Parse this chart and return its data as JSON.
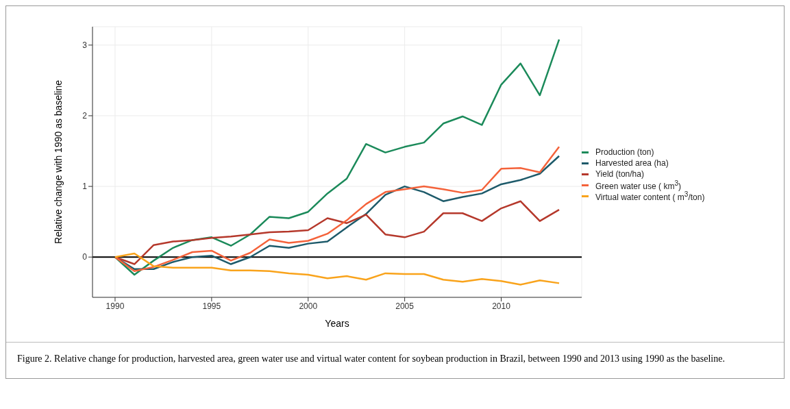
{
  "chart_data": {
    "type": "line",
    "xlabel": "Years",
    "ylabel": "Relative change with 1990 as baseline",
    "x": [
      1990,
      1991,
      1992,
      1993,
      1994,
      1995,
      1996,
      1997,
      1998,
      1999,
      2000,
      2001,
      2002,
      2003,
      2004,
      2005,
      2006,
      2007,
      2008,
      2009,
      2010,
      2011,
      2012,
      2013
    ],
    "series": [
      {
        "name": "Production (ton)",
        "color": "#1b8a5a",
        "values": [
          0,
          -0.25,
          -0.05,
          0.13,
          0.24,
          0.28,
          0.16,
          0.32,
          0.57,
          0.55,
          0.64,
          0.9,
          1.11,
          1.6,
          1.48,
          1.56,
          1.62,
          1.89,
          1.99,
          1.87,
          2.44,
          2.74,
          2.29,
          3.08
        ]
      },
      {
        "name": "Harvested area (ha)",
        "color": "#1d5a6a",
        "values": [
          0,
          -0.17,
          -0.17,
          -0.07,
          0.0,
          0.02,
          -0.1,
          0.0,
          0.16,
          0.13,
          0.19,
          0.22,
          0.42,
          0.61,
          0.88,
          1.0,
          0.92,
          0.79,
          0.85,
          0.9,
          1.03,
          1.09,
          1.18,
          1.43
        ]
      },
      {
        "name": "Yield (ton/ha)",
        "color": "#b5382b",
        "values": [
          0,
          -0.1,
          0.17,
          0.22,
          0.24,
          0.27,
          0.29,
          0.32,
          0.35,
          0.36,
          0.38,
          0.55,
          0.48,
          0.6,
          0.32,
          0.28,
          0.36,
          0.62,
          0.62,
          0.51,
          0.69,
          0.79,
          0.51,
          0.67
        ]
      },
      {
        "name": "Green water use ( km$^{3}$)",
        "color": "#f4623a",
        "values": [
          0,
          -0.2,
          -0.14,
          -0.04,
          0.07,
          0.09,
          -0.05,
          0.06,
          0.25,
          0.2,
          0.23,
          0.33,
          0.52,
          0.75,
          0.92,
          0.96,
          1.0,
          0.96,
          0.91,
          0.95,
          1.25,
          1.26,
          1.2,
          1.56
        ]
      },
      {
        "name": "Virtual water content ( m$^{3}$/ton)",
        "color": "#f9a31b",
        "values": [
          0,
          0.05,
          -0.13,
          -0.15,
          -0.15,
          -0.15,
          -0.19,
          -0.19,
          -0.2,
          -0.23,
          -0.25,
          -0.3,
          -0.27,
          -0.32,
          -0.23,
          -0.24,
          -0.24,
          -0.32,
          -0.35,
          -0.31,
          -0.34,
          -0.39,
          -0.33,
          -0.37
        ]
      }
    ],
    "xlim": [
      1988.83,
      2014.17
    ],
    "xticks": [
      1990,
      1995,
      2000,
      2005,
      2010
    ],
    "ylim": [
      -0.57,
      3.26
    ],
    "yticks": [
      0,
      1,
      2,
      3
    ],
    "ref_lines": [
      {
        "axis": "y",
        "value": 0,
        "color": "#000000"
      }
    ],
    "grid": true,
    "legend": "right",
    "marker": "none",
    "line_style": "solid",
    "annotations": [
      "Figure 2. Relative change for production, harvested area, green water use and virtual water content for soybean production in Brazil, between 1990 and 2013 using 1990 as the baseline."
    ]
  }
}
